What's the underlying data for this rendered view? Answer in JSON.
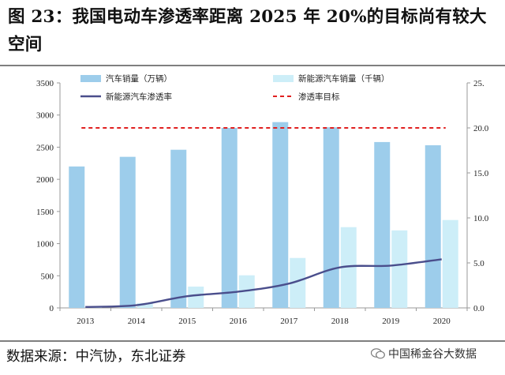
{
  "header": {
    "title": "图 23：我国电动车渗透率距离 2025 年 20%的目标尚有较大空间"
  },
  "footer": {
    "source": "数据来源：中汽协，东北证券",
    "watermark": "中国稀金谷大数据"
  },
  "colors": {
    "sales_bar": "#9dcdeb",
    "nev_bar": "#cdeef8",
    "penetration_line": "#4a4e8c",
    "target_line": "#e02020"
  },
  "chart_data": {
    "type": "bar",
    "categories": [
      "2013",
      "2014",
      "2015",
      "2016",
      "2017",
      "2018",
      "2019",
      "2020"
    ],
    "series": [
      {
        "name": "汽车销量（万辆）",
        "type": "bar",
        "axis": "left",
        "values": [
          2200,
          2350,
          2460,
          2800,
          2890,
          2810,
          2580,
          2530
        ]
      },
      {
        "name": "新能源汽车销量（千辆）",
        "type": "bar",
        "axis": "left",
        "values": [
          18,
          75,
          331,
          507,
          777,
          1256,
          1206,
          1367
        ]
      },
      {
        "name": "新能源汽车渗透率",
        "type": "line",
        "axis": "right",
        "values": [
          0.1,
          0.3,
          1.3,
          1.8,
          2.7,
          4.5,
          4.7,
          5.4
        ]
      },
      {
        "name": "渗透率目标",
        "type": "dashed-line",
        "axis": "right",
        "values": [
          20,
          20,
          20,
          20,
          20,
          20,
          20,
          20
        ]
      }
    ],
    "left_axis": {
      "min": 0,
      "max": 3500,
      "ticks": [
        "0",
        "500",
        "1000",
        "1500",
        "2000",
        "2500",
        "3000",
        "3500"
      ]
    },
    "right_axis": {
      "min": 0,
      "max": 25,
      "ticks": [
        "0.0",
        "5.0",
        "10.0",
        "15.0",
        "20.0",
        "25."
      ]
    },
    "legend_position": "top"
  }
}
